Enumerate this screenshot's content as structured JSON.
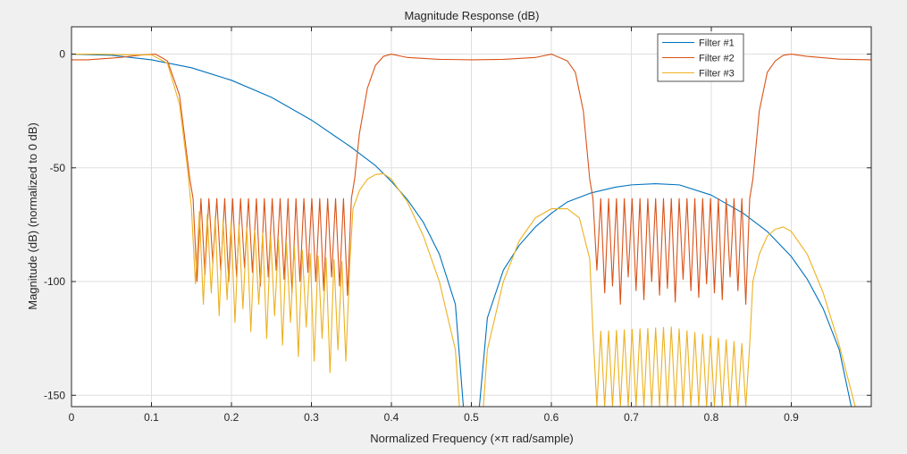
{
  "chart_data": {
    "type": "line",
    "title": "Magnitude Response (dB)",
    "xlabel_prefix": "Normalized Frequency  (",
    "xlabel_symbol": "×π",
    "xlabel_suffix": " rad/sample)",
    "ylabel": "Magnitude (dB) (normalized to 0 dB)",
    "xlim": [
      0,
      1
    ],
    "ylim": [
      -155,
      12
    ],
    "grid": true,
    "legend_position": "top-right",
    "xticks": [
      0,
      0.1,
      0.2,
      0.3,
      0.4,
      0.5,
      0.6,
      0.7,
      0.8,
      0.9
    ],
    "xtick_labels": [
      "0",
      "0.1",
      "0.2",
      "0.3",
      "0.4",
      "0.5",
      "0.6",
      "0.7",
      "0.8",
      "0.9"
    ],
    "yticks": [
      0,
      -50,
      -100,
      -150
    ],
    "ytick_labels": [
      "0",
      "-50",
      "-100",
      "-150"
    ],
    "series": [
      {
        "name": "Filter #1",
        "color": "#0072bd",
        "x": [
          0,
          0.05,
          0.1,
          0.15,
          0.2,
          0.25,
          0.3,
          0.35,
          0.38,
          0.4,
          0.42,
          0.44,
          0.46,
          0.48,
          0.49,
          0.51,
          0.52,
          0.54,
          0.56,
          0.58,
          0.6,
          0.62,
          0.65,
          0.68,
          0.7,
          0.73,
          0.76,
          0.8,
          0.84,
          0.87,
          0.9,
          0.92,
          0.94,
          0.96,
          0.975
        ],
        "values": [
          0,
          -0.5,
          -2.5,
          -6,
          -11.5,
          -19,
          -29,
          -41,
          -49,
          -56,
          -64,
          -74,
          -88,
          -110,
          -155,
          -155,
          -116,
          -95,
          -84,
          -76,
          -70,
          -65,
          -61,
          -58.5,
          -57.5,
          -57,
          -57.5,
          -62,
          -70,
          -78,
          -89,
          -99,
          -112,
          -130,
          -155
        ]
      },
      {
        "name": "Filter #2",
        "color": "#d95319",
        "x": [
          0,
          0.02,
          0.06,
          0.09,
          0.105,
          0.12,
          0.135,
          0.148,
          0.152,
          0.35,
          0.354,
          0.36,
          0.37,
          0.38,
          0.39,
          0.4,
          0.42,
          0.46,
          0.5,
          0.54,
          0.58,
          0.6,
          0.62,
          0.63,
          0.64,
          0.648,
          0.652,
          0.848,
          0.852,
          0.86,
          0.87,
          0.88,
          0.89,
          0.9,
          0.92,
          0.96,
          1.0
        ],
        "values": [
          -2.5,
          -2.5,
          -1.5,
          -0.3,
          0,
          -3,
          -18,
          -55,
          -68,
          -68,
          -55,
          -35,
          -15,
          -5,
          -1,
          0,
          -1.5,
          -2.3,
          -2.5,
          -2.3,
          -1.5,
          0,
          -3,
          -8,
          -25,
          -55,
          -68,
          -68,
          -55,
          -25,
          -8,
          -3,
          -0.5,
          0,
          -1,
          -2.2,
          -2.5
        ]
      },
      {
        "name": "Filter #3",
        "color": "#edb120",
        "x": [
          0,
          0.03,
          0.07,
          0.1,
          0.12,
          0.135,
          0.145,
          0.15,
          0.2,
          0.25,
          0.3,
          0.348,
          0.352,
          0.36,
          0.37,
          0.38,
          0.39,
          0.4,
          0.42,
          0.44,
          0.46,
          0.48,
          0.485,
          0.515,
          0.52,
          0.54,
          0.56,
          0.58,
          0.6,
          0.62,
          0.635,
          0.648,
          0.652,
          0.75,
          0.848,
          0.852,
          0.86,
          0.87,
          0.88,
          0.89,
          0.9,
          0.92,
          0.94,
          0.96,
          0.98
        ],
        "values": [
          0,
          0,
          -0.3,
          -0.3,
          -4,
          -22,
          -50,
          -68,
          -74,
          -80,
          -88,
          -92,
          -68,
          -60,
          -55,
          -53,
          -52.5,
          -55,
          -65,
          -80,
          -100,
          -130,
          -155,
          -155,
          -130,
          -100,
          -82,
          -72,
          -68,
          -68,
          -72,
          -90,
          -122,
          -120,
          -128,
          -100,
          -88,
          -80,
          -77,
          -76,
          -78,
          -88,
          -105,
          -128,
          -155
        ]
      }
    ],
    "ripple_bands": [
      {
        "series": 1,
        "x": [
          0.152,
          0.35
        ],
        "top": -63.5,
        "dips": [
          -100,
          -97,
          -92,
          -95,
          -100,
          -98,
          -94,
          -96,
          -102,
          -98,
          -95,
          -99,
          -105,
          -100,
          -96,
          -100,
          -104,
          -98,
          -102,
          -106
        ]
      },
      {
        "series": 1,
        "x": [
          0.652,
          0.848
        ],
        "top": -63.5,
        "dips": [
          -95,
          -105,
          -102,
          -110,
          -98,
          -104,
          -108,
          -100,
          -106,
          -103,
          -109,
          -99,
          -104,
          -107,
          -101,
          -105,
          -108,
          -98,
          -104,
          -110
        ]
      },
      {
        "series": 2,
        "x": [
          0.15,
          0.348
        ],
        "top": "envelope",
        "dips": [
          -101,
          -110,
          -105,
          -115,
          -108,
          -118,
          -112,
          -122,
          -110,
          -125,
          -115,
          -128,
          -118,
          -133,
          -120,
          -135,
          -125,
          -140,
          -130,
          -135
        ]
      },
      {
        "series": 2,
        "x": [
          0.652,
          0.848
        ],
        "top": "envelope",
        "dips": [
          -155,
          -155,
          -155,
          -155,
          -155,
          -155,
          -155,
          -155,
          -155,
          -155,
          -155,
          -155,
          -155,
          -155,
          -155,
          -155,
          -155,
          -155,
          -155,
          -155
        ]
      }
    ]
  }
}
